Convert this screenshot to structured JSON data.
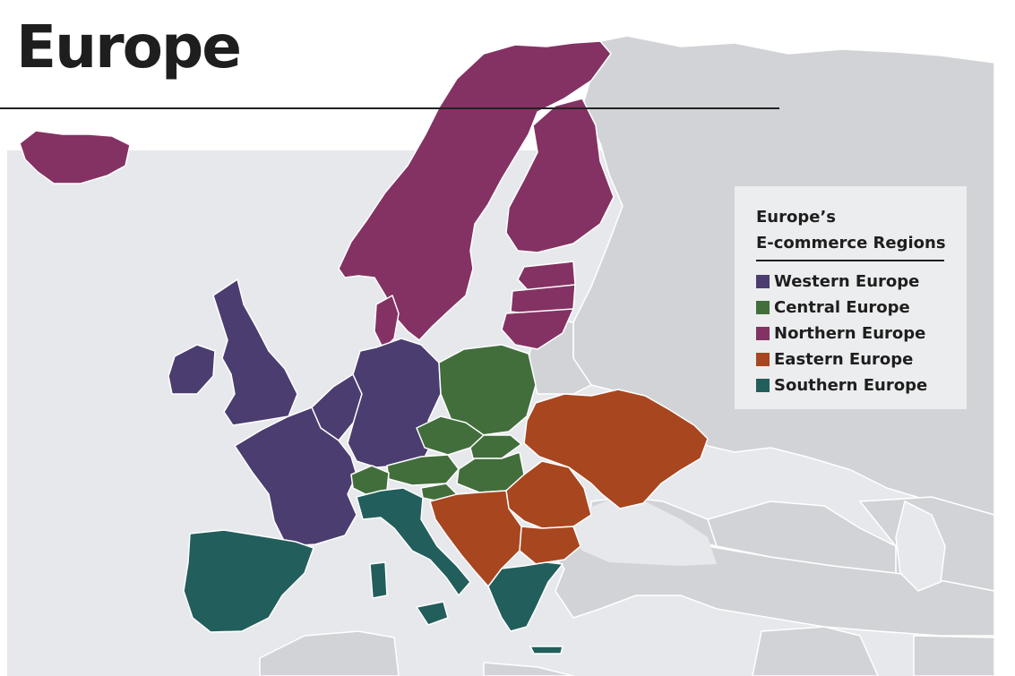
{
  "map": {
    "title": "Europe",
    "legend": {
      "title_line1": "Europe’s",
      "title_line2": "E-commerce Regions",
      "items": [
        {
          "label": "Western Europe",
          "color": "#4b3d70"
        },
        {
          "label": "Central Europe",
          "color": "#426e3c"
        },
        {
          "label": "Northern Europe",
          "color": "#843263"
        },
        {
          "label": "Eastern Europe",
          "color": "#a8461f"
        },
        {
          "label": "Southern Europe",
          "color": "#225e5c"
        }
      ]
    },
    "colors": {
      "sea": "#e6e8ec",
      "other_land": "#d1d3d7",
      "border": "#ffffff"
    }
  }
}
